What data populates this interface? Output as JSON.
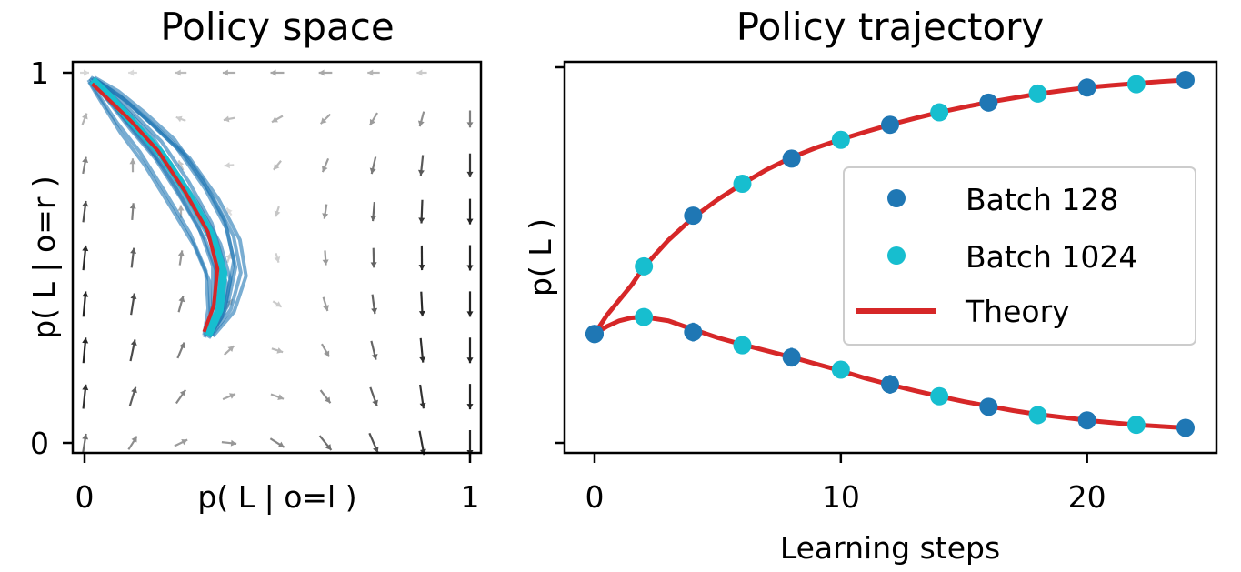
{
  "chart_data": [
    {
      "type": "vector-field-with-trajectories",
      "title": "Policy space",
      "xlabel": "p( L | o=l )",
      "ylabel": "p( L | o=r )",
      "xlim": [
        0,
        1
      ],
      "ylim": [
        0,
        1
      ],
      "xticks": [
        "0",
        "1"
      ],
      "yticks": [
        "0",
        "1"
      ],
      "grid": false,
      "trajectory_colors": {
        "samples": "#1f77b4",
        "mean": "#17becf",
        "theory": "#d62728"
      },
      "theory_path": {
        "x": [
          0.02,
          0.06,
          0.12,
          0.19,
          0.26,
          0.32,
          0.345,
          0.335,
          0.31
        ],
        "y": [
          0.97,
          0.93,
          0.87,
          0.79,
          0.68,
          0.57,
          0.47,
          0.37,
          0.3
        ]
      },
      "mean_path": {
        "x": [
          0.02,
          0.07,
          0.13,
          0.2,
          0.27,
          0.33,
          0.36,
          0.35,
          0.32
        ],
        "y": [
          0.98,
          0.93,
          0.86,
          0.78,
          0.67,
          0.56,
          0.46,
          0.36,
          0.29
        ]
      },
      "sample_offsets": [
        {
          "dx": -0.03,
          "dy": 0.02
        },
        {
          "dx": -0.015,
          "dy": -0.01
        },
        {
          "dx": 0.0,
          "dy": 0.03
        },
        {
          "dx": 0.02,
          "dy": -0.02
        },
        {
          "dx": 0.035,
          "dy": 0.015
        },
        {
          "dx": -0.04,
          "dy": -0.025
        },
        {
          "dx": 0.05,
          "dy": 0.0
        },
        {
          "dx": 0.01,
          "dy": -0.035
        },
        {
          "dx": -0.02,
          "dy": 0.04
        },
        {
          "dx": 0.03,
          "dy": 0.035
        },
        {
          "dx": -0.05,
          "dy": 0.005
        },
        {
          "dx": 0.065,
          "dy": -0.01
        }
      ]
    },
    {
      "type": "scatter",
      "title": "Policy trajectory",
      "xlabel": "Learning steps",
      "ylabel": "p( L )",
      "xlim": [
        -1.2,
        25.2
      ],
      "ylim": [
        0,
        1
      ],
      "xticks": [
        0,
        10,
        20
      ],
      "grid": false,
      "legend_position": "center-right",
      "series": [
        {
          "name": "Batch 128",
          "color": "#1f77b4",
          "upper": {
            "x": [
              0,
              4,
              8,
              12,
              16,
              20,
              24
            ],
            "y": [
              0.29,
              0.605,
              0.757,
              0.847,
              0.906,
              0.946,
              0.966
            ],
            "err": [
              0.0,
              0.02,
              0.018,
              0.02,
              0.012,
              0.01,
              0.008
            ]
          },
          "lower": {
            "x": [
              0,
              4,
              8,
              12,
              16,
              20,
              24
            ],
            "y": [
              0.29,
              0.295,
              0.228,
              0.156,
              0.096,
              0.06,
              0.04
            ],
            "err": [
              0.0,
              0.025,
              0.025,
              0.025,
              0.012,
              0.01,
              0.008
            ]
          }
        },
        {
          "name": "Batch 1024",
          "color": "#17becf",
          "upper": {
            "x": [
              2,
              6,
              10,
              14,
              18,
              22
            ],
            "y": [
              0.47,
              0.69,
              0.807,
              0.88,
              0.93,
              0.955
            ]
          },
          "lower": {
            "x": [
              2,
              6,
              10,
              14,
              18,
              22
            ],
            "y": [
              0.335,
              0.26,
              0.195,
              0.124,
              0.074,
              0.048
            ]
          }
        },
        {
          "name": "Theory",
          "color": "#d62728",
          "line": true,
          "upper": {
            "x": [
              0,
              0.5,
              1,
              1.5,
              2,
              3,
              4,
              5,
              6,
              7,
              8,
              9,
              10,
              11,
              12,
              13,
              14,
              15,
              16,
              17,
              18,
              19,
              20,
              21,
              22,
              23,
              24
            ],
            "y": [
              0.29,
              0.34,
              0.38,
              0.42,
              0.468,
              0.54,
              0.6,
              0.648,
              0.69,
              0.728,
              0.76,
              0.786,
              0.808,
              0.828,
              0.847,
              0.864,
              0.88,
              0.894,
              0.907,
              0.918,
              0.929,
              0.938,
              0.946,
              0.952,
              0.957,
              0.962,
              0.966
            ]
          },
          "lower": {
            "x": [
              0,
              0.5,
              1,
              1.5,
              2,
              3,
              4,
              5,
              6,
              7,
              8,
              9,
              10,
              11,
              12,
              13,
              14,
              15,
              16,
              17,
              18,
              19,
              20,
              21,
              22,
              23,
              24
            ],
            "y": [
              0.29,
              0.31,
              0.325,
              0.333,
              0.335,
              0.325,
              0.302,
              0.28,
              0.262,
              0.245,
              0.228,
              0.21,
              0.192,
              0.172,
              0.155,
              0.139,
              0.124,
              0.11,
              0.098,
              0.086,
              0.076,
              0.068,
              0.06,
              0.054,
              0.048,
              0.044,
              0.04
            ]
          }
        }
      ]
    }
  ]
}
